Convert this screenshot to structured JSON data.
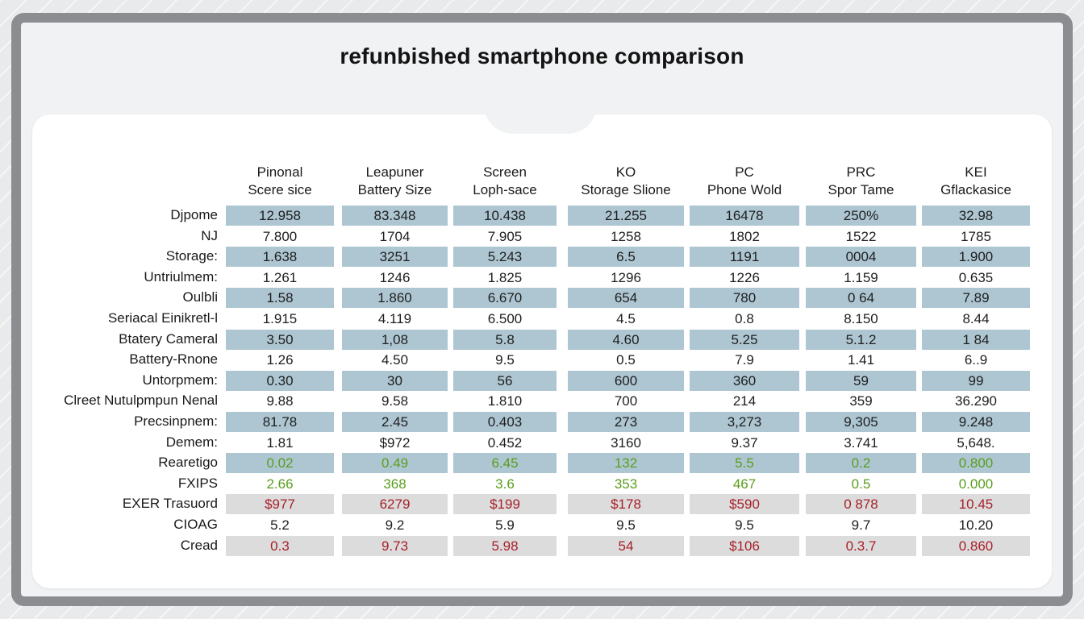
{
  "page_title": "refunbished smartphone comparison",
  "colors": {
    "row_shade_blue": "#adc6d2",
    "row_shade_gray": "#dcdcdc",
    "text_green": "#5a9e1c",
    "text_red": "#a7212a",
    "text_dark": "#1e1e1e"
  },
  "chart_data": {
    "type": "table",
    "title": "refunbished smartphone comparison",
    "columns": [
      {
        "line1": "Pinonal",
        "line2": "Scere sice"
      },
      {
        "line1": "Leapuner",
        "line2": "Battery Size"
      },
      {
        "line1": "Screen",
        "line2": "Loph-sace"
      },
      {
        "line1": "KO",
        "line2": "Storage Slione"
      },
      {
        "line1": "PC",
        "line2": "Phone Wold"
      },
      {
        "line1": "PRC",
        "line2": "Spor Tame"
      },
      {
        "line1": "KEI",
        "line2": "Gflackasice"
      }
    ],
    "rows": [
      {
        "label": "Djpome",
        "shade": "blue",
        "color": "dark",
        "values": [
          "12.958",
          "83.348",
          "10.438",
          "21.255",
          "16478",
          "250%",
          "32.98"
        ]
      },
      {
        "label": "NJ",
        "shade": "none",
        "color": "dark",
        "values": [
          "7.800",
          "1704",
          "7.905",
          "1258",
          "1802",
          "1522",
          "1785"
        ]
      },
      {
        "label": "Storage:",
        "shade": "blue",
        "color": "dark",
        "values": [
          "1.638",
          "3251",
          "5.243",
          "6.5",
          "1191",
          "0004",
          "1.900"
        ]
      },
      {
        "label": "Untriulmem:",
        "shade": "none",
        "color": "dark",
        "values": [
          "1.261",
          "1246",
          "1.825",
          "1296",
          "1226",
          "1.159",
          "0.635"
        ]
      },
      {
        "label": "Oulbli",
        "shade": "blue",
        "color": "dark",
        "values": [
          "1.58",
          "1.860",
          "6.670",
          "654",
          "780",
          "0 64",
          "7.89"
        ]
      },
      {
        "label": "Seriacal Einikretl-l",
        "shade": "none",
        "color": "dark",
        "values": [
          "1.915",
          "4.119",
          "6.500",
          "4.5",
          "0.8",
          "8.150",
          "8.44"
        ]
      },
      {
        "label": "Btatery Cameral",
        "shade": "blue",
        "color": "dark",
        "values": [
          "3.50",
          "1,08",
          "5.8",
          "4.60",
          "5.25",
          "5.1.2",
          "1 84"
        ]
      },
      {
        "label": "Battery-Rnone",
        "shade": "none",
        "color": "dark",
        "values": [
          "1.26",
          "4.50",
          "9.5",
          "0.5",
          "7.9",
          "1.41",
          "6..9"
        ]
      },
      {
        "label": "Untorpmem:",
        "shade": "blue",
        "color": "dark",
        "values": [
          "0.30",
          "30",
          "56",
          "600",
          "360",
          "59",
          "99"
        ]
      },
      {
        "label": "Clreet Nutulpmpun Nenal",
        "shade": "none",
        "color": "dark",
        "values": [
          "9.88",
          "9.58",
          "1.810",
          "700",
          "214",
          "359",
          "36.290"
        ]
      },
      {
        "label": "Precsinpnem:",
        "shade": "blue",
        "color": "dark",
        "values": [
          "81.78",
          "2.45",
          "0.403",
          "273",
          "3,273",
          "9,305",
          "9.248"
        ]
      },
      {
        "label": "Demem:",
        "shade": "none",
        "color": "dark",
        "values": [
          "1.81",
          "$972",
          "0.452",
          "3160",
          "9.37",
          "3.741",
          "5,648."
        ]
      },
      {
        "label": "Rearetigo",
        "shade": "blue",
        "color": "green",
        "values": [
          "0.02",
          "0.49",
          "6.45",
          "132",
          "5.5",
          "0.2",
          "0.800"
        ]
      },
      {
        "label": "FXIPS",
        "shade": "none",
        "color": "green",
        "values": [
          "2.66",
          "368",
          "3.6",
          "353",
          "467",
          "0.5",
          "0.000"
        ]
      },
      {
        "label": "EXER Trasuord",
        "shade": "gray",
        "color": "red",
        "values": [
          "$977",
          "6279",
          "$199",
          "$178",
          "$590",
          "0 878",
          "10.45"
        ]
      },
      {
        "label": "CIOAG",
        "shade": "none",
        "color": "dark",
        "values": [
          "5.2",
          "9.2",
          "5.9",
          "9.5",
          "9.5",
          "9.7",
          "10.20"
        ]
      },
      {
        "label": "Cread",
        "shade": "gray",
        "color": "red",
        "values": [
          "0.3",
          "9.73",
          "5.98",
          "54",
          "$106",
          "0.3.7",
          "0.860"
        ]
      }
    ]
  }
}
